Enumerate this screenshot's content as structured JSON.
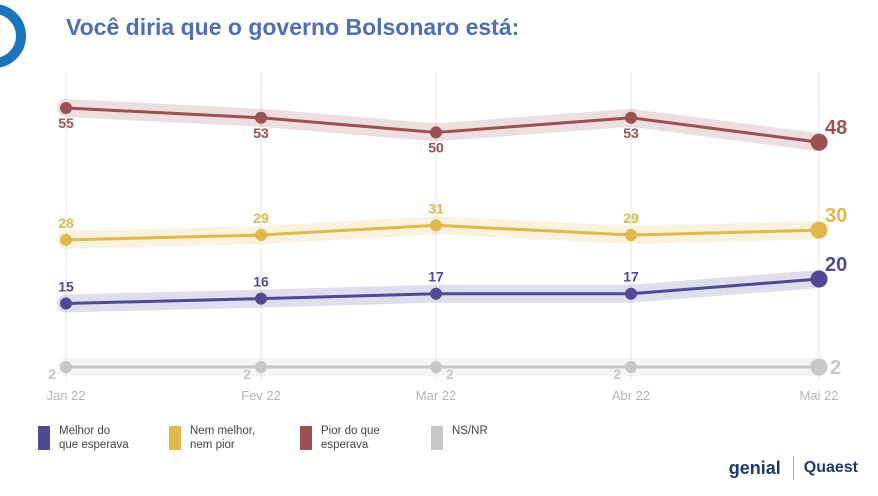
{
  "title": "Você diria que o governo Bolsonaro está:",
  "brands": {
    "genial": "genial",
    "quaest": "Quaest"
  },
  "chart_data": {
    "type": "line",
    "categories": [
      "Jan 22",
      "Fev 22",
      "Mar 22",
      "Abr 22",
      "Mai 22"
    ],
    "ylim": [
      0,
      60
    ],
    "grid": "vertical",
    "legend": "bottom-left",
    "series": [
      {
        "name": "Pior do que esperava",
        "color": "#9b5053",
        "values": [
          55,
          53,
          50,
          53,
          48
        ]
      },
      {
        "name": "Nem melhor, nem pior",
        "color": "#e0b84b",
        "values": [
          28,
          29,
          31,
          29,
          30
        ]
      },
      {
        "name": "Melhor do que esperava",
        "color": "#4f4a93",
        "values": [
          15,
          16,
          17,
          17,
          20
        ]
      },
      {
        "name": "NS/NR",
        "color": "#c7c7c7",
        "values": [
          2,
          2,
          2,
          2,
          2
        ]
      }
    ]
  },
  "legend": [
    {
      "label": "Melhor do\nque esperava",
      "color": "#4f4a93"
    },
    {
      "label": "Nem melhor,\nnem pior",
      "color": "#e0b84b"
    },
    {
      "label": "Pior do que\nesperava",
      "color": "#9b5053"
    },
    {
      "label": "NS/NR",
      "color": "#c7c7c7"
    }
  ]
}
